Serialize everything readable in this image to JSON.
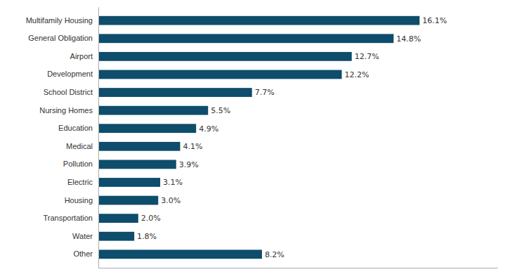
{
  "chart_data": {
    "type": "bar",
    "orientation": "horizontal",
    "categories": [
      "Multifamily Housing",
      "General Obligation",
      "Airport",
      "Development",
      "School District",
      "Nursing Homes",
      "Education",
      "Medical",
      "Pollution",
      "Electric",
      "Housing",
      "Transportation",
      "Water",
      "Other"
    ],
    "values": [
      16.1,
      14.8,
      12.7,
      12.2,
      7.7,
      5.5,
      4.9,
      4.1,
      3.9,
      3.1,
      3.0,
      2.0,
      1.8,
      8.2
    ],
    "value_labels": [
      "16.1%",
      "14.8%",
      "12.7%",
      "12.2%",
      "7.7%",
      "5.5%",
      "4.9%",
      "4.1%",
      "3.9%",
      "3.1%",
      "3.0%",
      "2.0%",
      "1.8%",
      "8.2%"
    ],
    "data_labels": true,
    "color": "#0e4d6b",
    "xlim": [
      0,
      20
    ],
    "tick_labels": "y"
  }
}
